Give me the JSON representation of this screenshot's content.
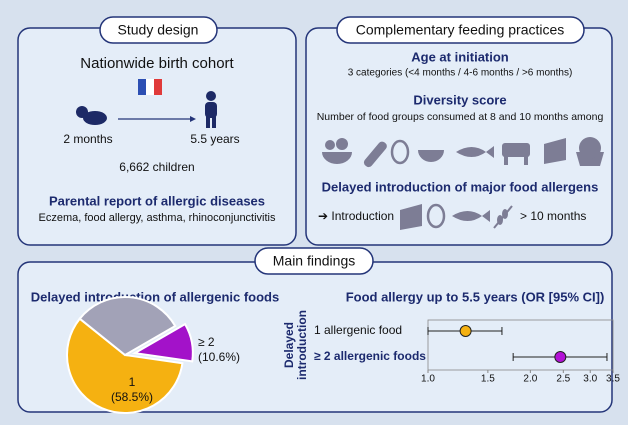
{
  "study_design": {
    "title": "Study design",
    "cohort": "Nationwide birth cohort",
    "start_age": "2 months",
    "end_age": "5.5 years",
    "children": "6,662 children",
    "report_title": "Parental report of allergic diseases",
    "report_text": "Eczema, food allergy, asthma, rhinoconjunctivitis"
  },
  "feeding": {
    "title": "Complementary feeding practices",
    "age_title": "Age at initiation",
    "age_text": "3 categories (<4 months / 4-6 months / >6 months)",
    "diversity_title": "Diversity score",
    "diversity_text": "Number of food groups consumed at 8 and 10 months among",
    "allergen_title": "Delayed introduction of major food allergens",
    "intro": "➔ Introduction",
    "after": "> 10 months"
  },
  "findings": {
    "title": "Main findings",
    "pie": {
      "title": "Delayed introduction of allergenic foods",
      "slices": [
        {
          "label": "≥ 2",
          "value_label": "(10.6%)",
          "value": 10.6,
          "color": "#a312c9"
        },
        {
          "label": "1",
          "value_label": "(58.5%)",
          "value": 58.5,
          "color": "#f5b111"
        },
        {
          "label": null,
          "value": 30.9,
          "color": "#a2a2b7"
        }
      ]
    },
    "forest": {
      "title": "Food allergy up to 5.5 years (OR [95% CI])",
      "ylabel": [
        "Delayed",
        "introduction"
      ],
      "log": true,
      "xlim": [
        1,
        3.5
      ],
      "xticks": [
        {
          "value": 1,
          "label": "1.0"
        },
        1.5,
        {
          "value": 2,
          "label": "2.0"
        },
        2.5,
        {
          "value": 3,
          "label": "3.0"
        },
        3.5
      ],
      "rows": [
        {
          "label": "1 allergenic food",
          "estimate": 1.29,
          "ci": [
            1,
            1.65
          ],
          "color": "#f5b111"
        },
        {
          "label": "≥ 2 allergenic foods",
          "estimate": 2.45,
          "ci": [
            1.78,
            3.36
          ],
          "color": "#b312d6"
        }
      ]
    }
  }
}
